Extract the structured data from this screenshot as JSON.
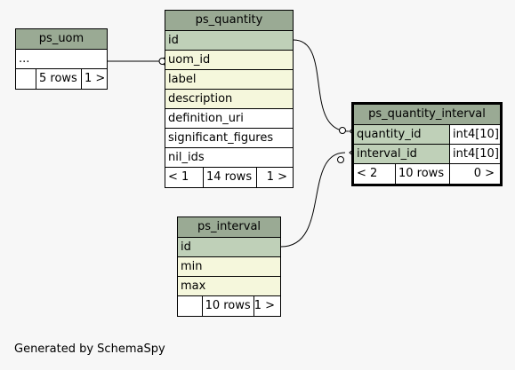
{
  "tables": {
    "ps_uom": {
      "name": "ps_uom",
      "rows": [
        "..."
      ],
      "footer": [
        "",
        "5 rows",
        "1 >"
      ]
    },
    "ps_quantity": {
      "name": "ps_quantity",
      "columns": [
        "id",
        "uom_id",
        "label",
        "description",
        "definition_uri",
        "significant_figures",
        "nil_ids"
      ],
      "footer": [
        "< 1",
        "14 rows",
        "1 >"
      ]
    },
    "ps_quantity_interval": {
      "name": "ps_quantity_interval",
      "columns": [
        {
          "name": "quantity_id",
          "type": "int4[10]"
        },
        {
          "name": "interval_id",
          "type": "int4[10]"
        }
      ],
      "footer": [
        "< 2",
        "10 rows",
        "0 >"
      ]
    },
    "ps_interval": {
      "name": "ps_interval",
      "columns": [
        "id",
        "min",
        "max"
      ],
      "footer": [
        "",
        "10 rows",
        "1 >"
      ]
    }
  },
  "caption": "Generated by SchemaSpy",
  "colors": {
    "header": "#9aaa94",
    "primary_key": "#bfd0b8",
    "foreign_key": "#f5f7dc",
    "background": "#f7f7f7"
  }
}
